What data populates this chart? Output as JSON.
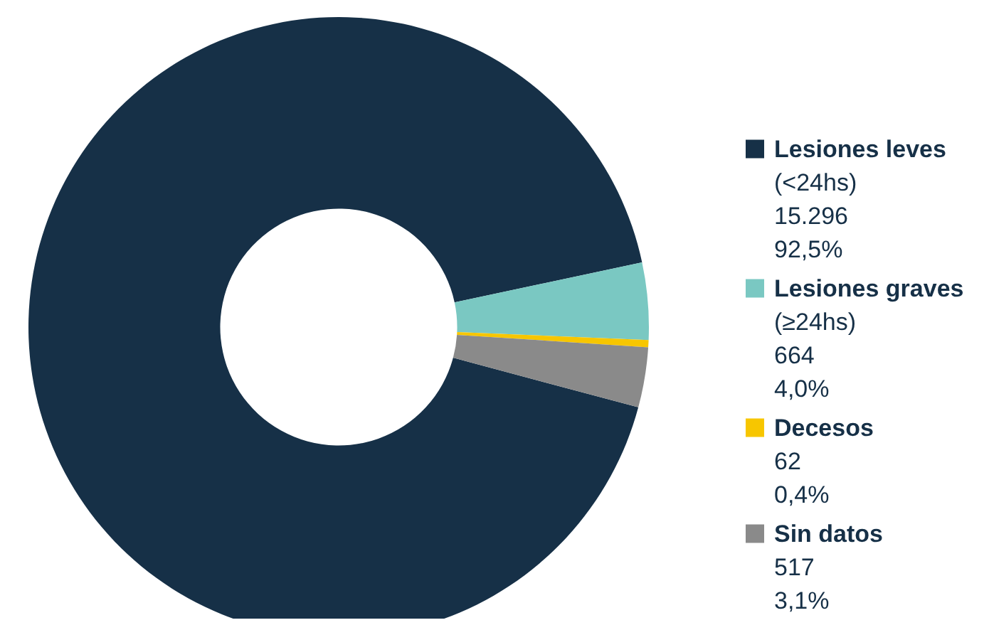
{
  "chart_data": {
    "type": "donut",
    "categories": [
      "Lesiones leves\n(<24hs)",
      "Lesiones graves\n(≥24hs)",
      "Decesos",
      "Sin datos"
    ],
    "values": [
      15296,
      664,
      62,
      517
    ],
    "value_labels": [
      "15.296\n92,5%",
      "664\n4,0%",
      "62\n0,4%",
      "517\n3,1%"
    ],
    "colors": [
      "#163047",
      "#7ac8c2",
      "#f7c600",
      "#8a8a8a"
    ],
    "legend": "right"
  }
}
